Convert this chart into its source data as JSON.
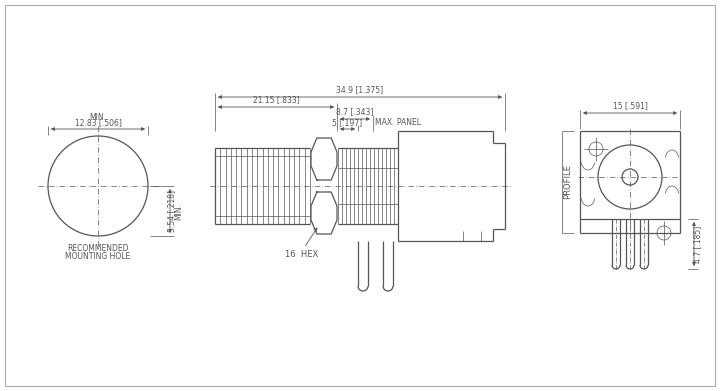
{
  "bg_color": "#ffffff",
  "line_color": "#555555",
  "text_color": "#555555",
  "lw": 0.9,
  "tlw": 0.5,
  "fs": 5.5,
  "annotations": {
    "dim1": "34.9 [1.375]",
    "dim2": "21.15 [.833]",
    "dim3": "8.7 [.343]",
    "dim4": "5 [.197]",
    "dim4b": "MAX. PANEL",
    "dim5a": "12.83 [.506]",
    "dim5b": "MIN.",
    "dim6a": "5.54 [.218]",
    "dim6b": "MIN.",
    "dim7": "15 [.591]",
    "dim8": "4.7 [.185]",
    "label_hex": "16  HEX",
    "label_profile": "PROFILE",
    "label_hole1": "RECOMMENDED",
    "label_hole2": "MOUNTING HOLE"
  }
}
